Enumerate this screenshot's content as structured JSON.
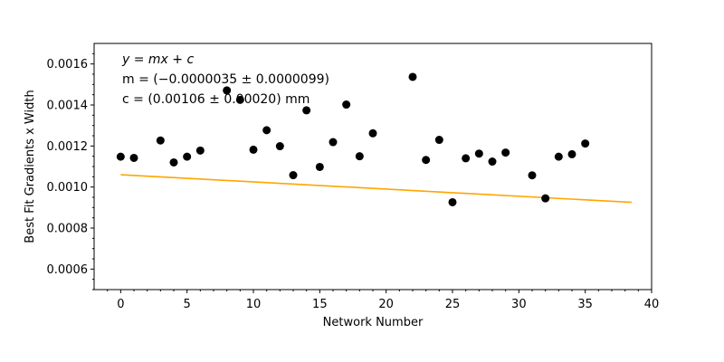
{
  "chart_data": {
    "type": "scatter",
    "xlabel": "Network Number",
    "ylabel": "Best Fit Gradients x Width",
    "xlim": [
      -2,
      40
    ],
    "ylim": [
      0.0005,
      0.0017
    ],
    "x_ticks": [
      0,
      5,
      10,
      15,
      20,
      25,
      30,
      35,
      40
    ],
    "y_ticks": [
      0.0006,
      0.0008,
      0.001,
      0.0012,
      0.0014,
      0.0016
    ],
    "y_tick_labels": [
      "0.0006",
      "0.0008",
      "0.0010",
      "0.0012",
      "0.0014",
      "0.0016"
    ],
    "grid": false,
    "points": {
      "color": "#000000",
      "x": [
        0,
        1,
        3,
        4,
        5,
        6,
        8,
        9,
        10,
        11,
        12,
        13,
        14,
        15,
        16,
        17,
        18,
        19,
        22,
        23,
        24,
        25,
        26,
        27,
        28,
        29,
        31,
        32,
        33,
        34,
        35
      ],
      "y": [
        0.001148,
        0.001142,
        0.001227,
        0.00112,
        0.001148,
        0.001178,
        0.001471,
        0.001425,
        0.001182,
        0.001277,
        0.001199,
        0.001058,
        0.001374,
        0.001098,
        0.001219,
        0.001402,
        0.00115,
        0.001262,
        0.001537,
        0.001132,
        0.00123,
        0.000926,
        0.00114,
        0.001163,
        0.001124,
        0.001168,
        0.001057,
        0.000945,
        0.001148,
        0.00116,
        0.001212
      ]
    },
    "fit_line": {
      "color": "#FFA500",
      "m": -3.5e-06,
      "c": 0.00106,
      "x_range": [
        0,
        38.5
      ]
    },
    "annotations": [
      "y = mx + c",
      "m = (−0.0000035 ± 0.0000099)",
      "c = (0.00106 ± 0.00020) mm"
    ]
  }
}
